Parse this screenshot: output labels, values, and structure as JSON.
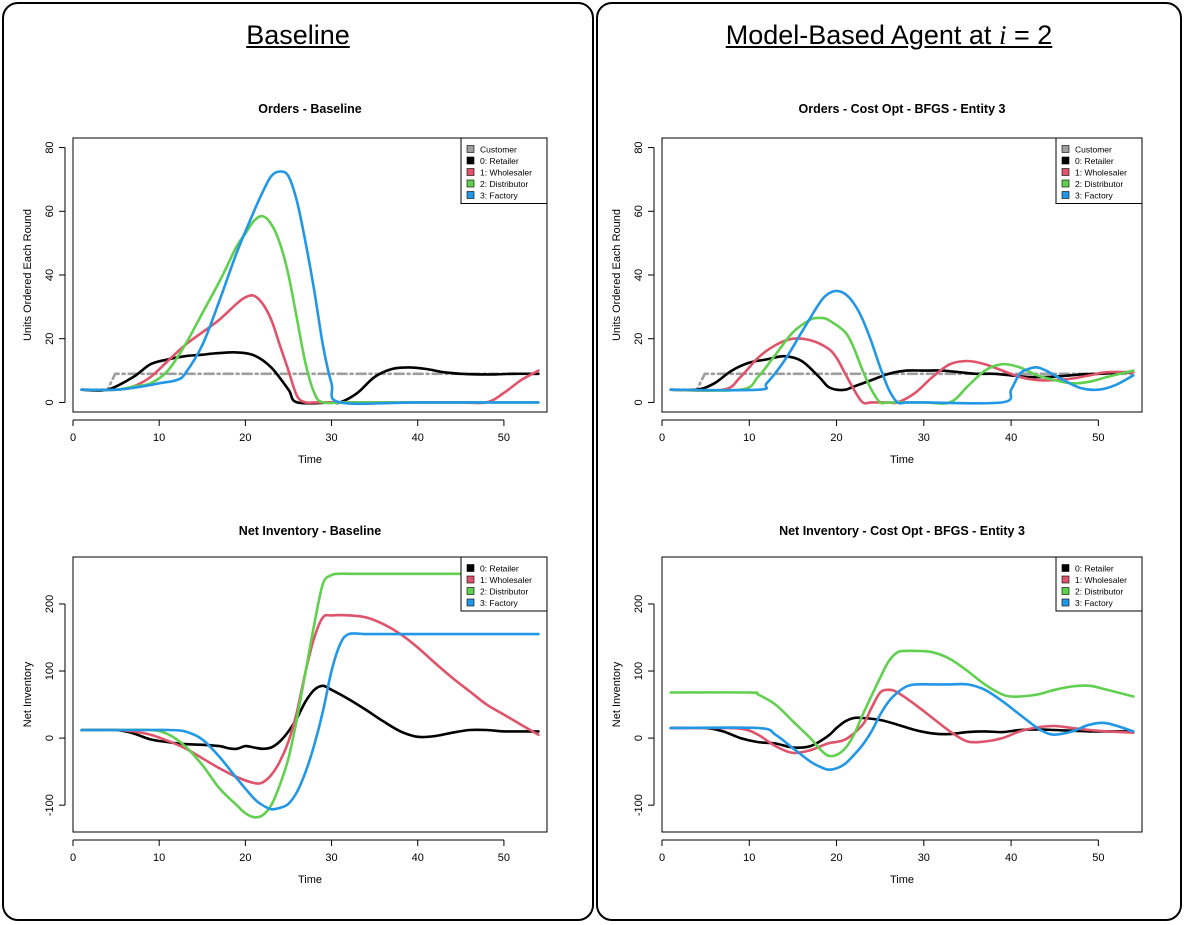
{
  "panels": [
    {
      "title_prefix": "Baseline",
      "title_var": "",
      "title_rest": ""
    },
    {
      "title_prefix": "Model-Based Agent at ",
      "title_var": "i",
      "title_rest": " = 2"
    }
  ],
  "chart_data": [
    {
      "type": "line",
      "title": "Orders - Baseline",
      "xlabel": "Time",
      "ylabel": "Units Ordered Each Round",
      "xlim": [
        0,
        55
      ],
      "ylim": [
        -3,
        83
      ],
      "xticks": [
        0,
        10,
        20,
        30,
        40,
        50
      ],
      "yticks": [
        0,
        20,
        40,
        60,
        80
      ],
      "legend_position": "top-right",
      "series": [
        {
          "name": "Customer",
          "color": "#9E9E9E",
          "dash": "dashdot",
          "x": [
            1,
            4,
            4.9,
            54
          ],
          "y": [
            4,
            4,
            9,
            9
          ]
        },
        {
          "name": "0: Retailer",
          "color": "#000000",
          "x": [
            1,
            4,
            7,
            9,
            11,
            13,
            15,
            17,
            19,
            21,
            23,
            25,
            26,
            30,
            31,
            33,
            35,
            37,
            39,
            41,
            43,
            45,
            47,
            49,
            51,
            54
          ],
          "y": [
            4,
            4,
            8,
            12,
            13.5,
            14.5,
            15,
            15.5,
            15.7,
            14.8,
            11,
            4,
            0,
            0,
            0,
            3,
            8,
            10.5,
            11,
            10.5,
            9.5,
            9,
            8.8,
            8.8,
            9,
            9
          ]
        },
        {
          "name": "1: Wholesaler",
          "color": "#DF536B",
          "x": [
            1,
            5,
            7,
            9,
            11,
            13,
            15,
            17,
            19,
            20,
            21,
            22,
            23,
            24,
            25,
            26,
            27,
            28,
            30,
            35,
            40,
            45,
            48,
            50,
            52,
            54
          ],
          "y": [
            4,
            4,
            5,
            8,
            13,
            18,
            22,
            26,
            31,
            33,
            33.5,
            31,
            26,
            18,
            10,
            2,
            0,
            0,
            0,
            0,
            0,
            0,
            0,
            3,
            7,
            10
          ]
        },
        {
          "name": "2: Distributor",
          "color": "#61D04F",
          "x": [
            1,
            5,
            7,
            9,
            11,
            13,
            15,
            17,
            19,
            20,
            21,
            22,
            23,
            24,
            25,
            26,
            27,
            28,
            29,
            32,
            40,
            54
          ],
          "y": [
            4,
            4,
            5,
            6,
            10,
            18,
            28,
            38,
            49,
            53,
            57,
            58.5,
            56,
            50,
            40,
            26,
            12,
            3,
            0,
            0,
            0,
            0
          ]
        },
        {
          "name": "3: Factory",
          "color": "#2297E6",
          "x": [
            1,
            5,
            8,
            10,
            12,
            13,
            15,
            17,
            19,
            21,
            22,
            23,
            24,
            25,
            26,
            27,
            28,
            29,
            30,
            31,
            40,
            54
          ],
          "y": [
            4,
            4,
            5,
            6,
            7,
            9,
            18,
            32,
            47,
            60,
            66,
            71,
            72.5,
            71,
            63,
            50,
            35,
            18,
            6,
            0,
            0,
            0
          ]
        }
      ]
    },
    {
      "type": "line",
      "title": "Net Inventory - Baseline",
      "xlabel": "Time",
      "ylabel": "Net Inventory",
      "xlim": [
        0,
        55
      ],
      "ylim": [
        -140,
        270
      ],
      "xticks": [
        0,
        10,
        20,
        30,
        40,
        50
      ],
      "yticks": [
        -100,
        0,
        100,
        200
      ],
      "legend_position": "top-right",
      "series": [
        {
          "name": "0: Retailer",
          "color": "#000000",
          "x": [
            1,
            5,
            7,
            9,
            11,
            13,
            15,
            17,
            18,
            19,
            20,
            21,
            22,
            23,
            24,
            25,
            26,
            27,
            28,
            29,
            30,
            32,
            34,
            36,
            38,
            40,
            42,
            44,
            46,
            48,
            50,
            52,
            54
          ],
          "y": [
            12,
            12,
            7,
            -2,
            -6,
            -9,
            -10,
            -12,
            -15,
            -16,
            -12,
            -14,
            -16,
            -14,
            -5,
            10,
            30,
            55,
            72,
            78,
            72,
            58,
            42,
            25,
            10,
            2,
            3,
            8,
            12,
            12,
            10,
            10,
            10
          ]
        },
        {
          "name": "1: Wholesaler",
          "color": "#DF536B",
          "x": [
            1,
            5,
            7,
            9,
            11,
            13,
            15,
            17,
            19,
            21,
            22,
            23,
            24,
            25,
            26,
            27,
            28,
            29,
            30,
            32,
            34,
            36,
            38,
            40,
            42,
            44,
            46,
            48,
            50,
            52,
            54
          ],
          "y": [
            12,
            12,
            10,
            5,
            -4,
            -15,
            -30,
            -45,
            -58,
            -67,
            -66,
            -55,
            -35,
            -5,
            40,
            100,
            150,
            180,
            183,
            183,
            180,
            170,
            155,
            135,
            112,
            90,
            70,
            50,
            35,
            20,
            5
          ]
        },
        {
          "name": "2: Distributor",
          "color": "#61D04F",
          "x": [
            1,
            5,
            9,
            11,
            13,
            15,
            17,
            19,
            20,
            21,
            22,
            23,
            24,
            25,
            26,
            27,
            28,
            29,
            30,
            31,
            32,
            35,
            40,
            45,
            50,
            54
          ],
          "y": [
            12,
            12,
            12,
            6,
            -12,
            -40,
            -75,
            -100,
            -112,
            -118,
            -115,
            -100,
            -70,
            -30,
            30,
            100,
            170,
            230,
            243,
            245,
            245,
            245,
            245,
            245,
            245,
            245
          ]
        },
        {
          "name": "3: Factory",
          "color": "#2297E6",
          "x": [
            1,
            5,
            9,
            11,
            13,
            15,
            17,
            19,
            21,
            22,
            23,
            24,
            25,
            26,
            27,
            28,
            29,
            30,
            31,
            32,
            34,
            36,
            40,
            45,
            50,
            54
          ],
          "y": [
            12,
            12,
            12,
            12,
            10,
            -2,
            -28,
            -60,
            -90,
            -100,
            -106,
            -104,
            -98,
            -80,
            -50,
            -10,
            40,
            100,
            140,
            155,
            155,
            155,
            155,
            155,
            155,
            155
          ]
        }
      ]
    },
    {
      "type": "line",
      "title": "Orders - Cost Opt - BFGS - Entity 3",
      "xlabel": "Time",
      "ylabel": "Units Ordered Each Round",
      "xlim": [
        0,
        55
      ],
      "ylim": [
        -3,
        83
      ],
      "xticks": [
        0,
        10,
        20,
        30,
        40,
        50
      ],
      "yticks": [
        0,
        20,
        40,
        60,
        80
      ],
      "legend_position": "top-right",
      "series": [
        {
          "name": "Customer",
          "color": "#9E9E9E",
          "dash": "dashdot",
          "x": [
            1,
            4,
            4.9,
            54
          ],
          "y": [
            4,
            4,
            9,
            9
          ]
        },
        {
          "name": "0: Retailer",
          "color": "#000000",
          "x": [
            1,
            4,
            6,
            8,
            10,
            12,
            14,
            16,
            18,
            19,
            20,
            21,
            22,
            24,
            26,
            28,
            30,
            32,
            34,
            36,
            38,
            40,
            42,
            44,
            46,
            48,
            50,
            52,
            54
          ],
          "y": [
            4,
            4,
            6,
            10,
            12.5,
            13.5,
            14.5,
            13,
            8,
            5,
            4,
            4,
            5,
            7,
            9,
            10,
            10,
            10,
            9.5,
            9,
            9,
            8.5,
            8,
            8,
            8.3,
            8.8,
            9,
            9.3,
            9.5
          ]
        },
        {
          "name": "1: Wholesaler",
          "color": "#DF536B",
          "x": [
            1,
            7,
            9,
            11,
            13,
            15,
            17,
            19,
            20,
            21,
            22,
            23,
            24,
            26,
            27,
            29,
            31,
            33,
            35,
            37,
            39,
            41,
            43,
            45,
            47,
            49,
            51,
            54
          ],
          "y": [
            4,
            4,
            8,
            14,
            18,
            20,
            19.5,
            17,
            14,
            9,
            4,
            0,
            0,
            0,
            0,
            3,
            8,
            12,
            13,
            12,
            10,
            8,
            7,
            7,
            7.5,
            8.5,
            9.5,
            9.5
          ]
        },
        {
          "name": "2: Distributor",
          "color": "#61D04F",
          "x": [
            1,
            9,
            11,
            13,
            15,
            17,
            18,
            19,
            21,
            22,
            23,
            24,
            25,
            26,
            30,
            33,
            35,
            37,
            39,
            41,
            43,
            45,
            47,
            49,
            51,
            54
          ],
          "y": [
            4,
            4,
            8,
            15,
            22,
            26,
            26.5,
            26,
            22,
            17,
            10,
            4,
            0,
            0,
            0,
            0,
            5,
            10,
            12,
            11,
            8.5,
            7,
            6,
            6.5,
            8,
            10
          ]
        },
        {
          "name": "3: Factory",
          "color": "#2297E6",
          "x": [
            1,
            11,
            12,
            14,
            16,
            18,
            19,
            20,
            21,
            22,
            23,
            24,
            25,
            26,
            27,
            28,
            30,
            39,
            40,
            41,
            42,
            43,
            44,
            46,
            48,
            50,
            52,
            54
          ],
          "y": [
            4,
            4,
            6,
            13,
            22,
            31,
            34,
            35,
            34,
            31,
            26,
            19,
            11,
            4,
            0,
            0,
            0,
            0,
            4,
            9,
            10.5,
            11,
            10,
            7,
            4.5,
            4,
            5.5,
            8.5
          ]
        }
      ]
    },
    {
      "type": "line",
      "title": "Net Inventory - Cost Opt - BFGS - Entity 3",
      "xlabel": "Time",
      "ylabel": "Net Inventory",
      "xlim": [
        0,
        55
      ],
      "ylim": [
        -140,
        270
      ],
      "xticks": [
        0,
        10,
        20,
        30,
        40,
        50
      ],
      "yticks": [
        -100,
        0,
        100,
        200
      ],
      "legend_position": "top-right",
      "series": [
        {
          "name": "0: Retailer",
          "color": "#000000",
          "x": [
            1,
            5,
            7,
            9,
            11,
            13,
            15,
            17,
            19,
            20,
            21,
            22,
            23,
            25,
            27,
            29,
            31,
            33,
            35,
            37,
            39,
            41,
            43,
            45,
            47,
            49,
            51,
            54
          ],
          "y": [
            15,
            15,
            10,
            0,
            -6,
            -8,
            -14,
            -12,
            3,
            15,
            25,
            30,
            30,
            27,
            20,
            12,
            7,
            6,
            9,
            10,
            9,
            12,
            13,
            12,
            11,
            10,
            10,
            10
          ]
        },
        {
          "name": "1: Wholesaler",
          "color": "#DF536B",
          "x": [
            1,
            5,
            9,
            11,
            13,
            15,
            17,
            19,
            21,
            23,
            24,
            25,
            26,
            27,
            29,
            31,
            33,
            35,
            37,
            39,
            41,
            43,
            45,
            47,
            49,
            51,
            54
          ],
          "y": [
            15,
            15,
            14,
            5,
            -12,
            -22,
            -18,
            -8,
            -2,
            20,
            45,
            68,
            72,
            68,
            50,
            30,
            10,
            -5,
            -5,
            0,
            10,
            16,
            18,
            15,
            12,
            10,
            8
          ]
        },
        {
          "name": "2: Distributor",
          "color": "#61D04F",
          "x": [
            1,
            10,
            11,
            13,
            15,
            17,
            18,
            19,
            20,
            21,
            22,
            23,
            25,
            26,
            27,
            28,
            29,
            31,
            33,
            35,
            37,
            39,
            40,
            41,
            43,
            45,
            47,
            49,
            51,
            54
          ],
          "y": [
            68,
            68,
            65,
            50,
            25,
            0,
            -15,
            -26,
            -25,
            -15,
            5,
            35,
            90,
            115,
            128,
            130,
            130,
            128,
            118,
            100,
            80,
            65,
            62,
            62,
            65,
            72,
            77,
            78,
            72,
            62
          ]
        },
        {
          "name": "3: Factory",
          "color": "#2297E6",
          "x": [
            1,
            11,
            13,
            15,
            17,
            18,
            19,
            20,
            21,
            22,
            23,
            24,
            25,
            26,
            27,
            28,
            29,
            31,
            33,
            35,
            37,
            39,
            41,
            43,
            44,
            45,
            47,
            49,
            51,
            54
          ],
          "y": [
            15,
            15,
            5,
            -15,
            -35,
            -42,
            -47,
            -45,
            -38,
            -25,
            -10,
            10,
            35,
            55,
            68,
            77,
            80,
            80,
            80,
            80,
            72,
            55,
            35,
            15,
            8,
            5,
            10,
            20,
            22,
            10
          ]
        }
      ]
    }
  ]
}
